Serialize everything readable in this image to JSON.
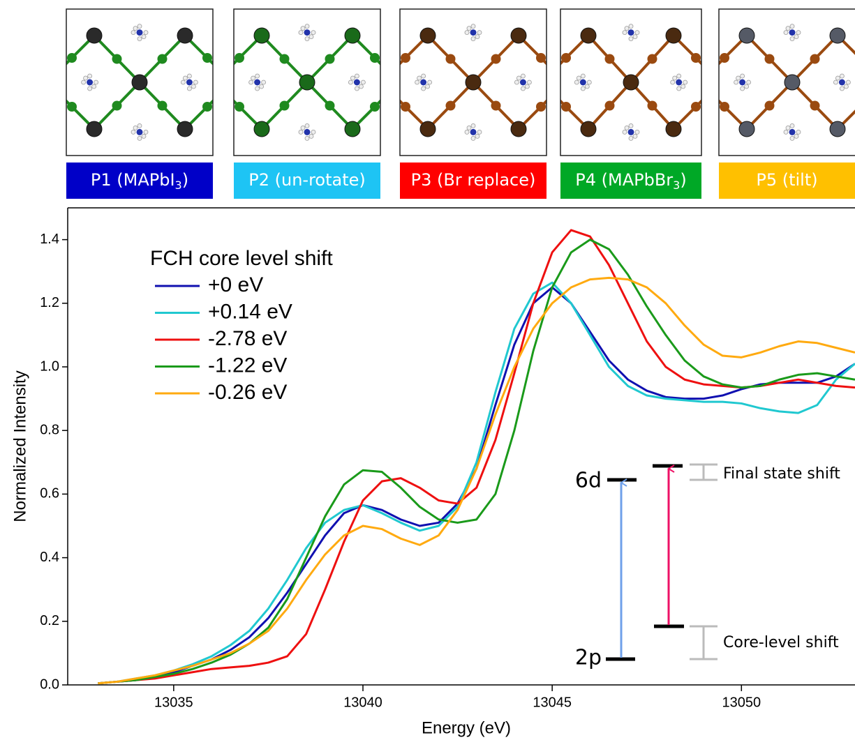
{
  "panels": [
    {
      "label_parts": [
        "P1 (MAPbI",
        "3",
        ")"
      ],
      "color": "#0000c8"
    },
    {
      "label_parts": [
        "P2 (un-rotate)"
      ],
      "color": "#1ec4f4"
    },
    {
      "label_parts": [
        "P3 (Br replace)"
      ],
      "color": "#ff0000"
    },
    {
      "label_parts": [
        "P4 (MAPbBr",
        "3",
        ")"
      ],
      "color": "#00a826"
    },
    {
      "label_parts": [
        "P5 (tilt)"
      ],
      "color": "#ffc000"
    }
  ],
  "chart_data": {
    "type": "line",
    "xlabel": "Energy (eV)",
    "ylabel": "Normalized Intensity",
    "legend_title": "FCH core level shift",
    "xlim": [
      13032.2,
      13053
    ],
    "xticks": [
      13035,
      13040,
      13045,
      13050
    ],
    "ylim": [
      0,
      1.5
    ],
    "yticks": [
      {
        "value": 0,
        "label": "0.0"
      },
      0.2,
      0.4,
      0.6,
      0.8,
      {
        "value": 1,
        "label": "1.0"
      },
      1.2,
      1.4
    ],
    "x": [
      13033,
      13033.5,
      13034,
      13034.5,
      13035,
      13035.5,
      13036,
      13036.5,
      13037,
      13037.5,
      13038,
      13038.5,
      13039,
      13039.5,
      13040,
      13040.5,
      13041,
      13041.5,
      13042,
      13042.5,
      13043,
      13043.5,
      13044,
      13044.5,
      13045,
      13045.5,
      13046,
      13046.5,
      13047,
      13047.5,
      13048,
      13048.5,
      13049,
      13049.5,
      13050,
      13050.5,
      13051,
      13051.5,
      13052,
      13052.5,
      13053
    ],
    "series": [
      {
        "name": "+0 eV",
        "color": "#1010b0",
        "values": [
          0.005,
          0.01,
          0.015,
          0.025,
          0.04,
          0.06,
          0.08,
          0.11,
          0.15,
          0.21,
          0.29,
          0.38,
          0.47,
          0.54,
          0.565,
          0.55,
          0.52,
          0.5,
          0.51,
          0.57,
          0.68,
          0.88,
          1.07,
          1.2,
          1.25,
          1.2,
          1.11,
          1.02,
          0.96,
          0.925,
          0.905,
          0.9,
          0.9,
          0.91,
          0.93,
          0.945,
          0.95,
          0.95,
          0.95,
          0.97,
          1.01
        ]
      },
      {
        "name": "+0.14 eV",
        "color": "#20c8d0",
        "values": [
          0.005,
          0.01,
          0.02,
          0.03,
          0.045,
          0.065,
          0.09,
          0.125,
          0.17,
          0.24,
          0.33,
          0.43,
          0.51,
          0.55,
          0.565,
          0.54,
          0.51,
          0.485,
          0.5,
          0.56,
          0.7,
          0.92,
          1.12,
          1.23,
          1.265,
          1.2,
          1.1,
          1.0,
          0.94,
          0.91,
          0.9,
          0.895,
          0.89,
          0.89,
          0.885,
          0.87,
          0.86,
          0.855,
          0.88,
          0.96,
          1.01
        ]
      },
      {
        "name": "-2.78 eV",
        "color": "#ee1010",
        "values": [
          0.005,
          0.01,
          0.015,
          0.02,
          0.03,
          0.04,
          0.05,
          0.055,
          0.06,
          0.07,
          0.09,
          0.16,
          0.3,
          0.45,
          0.58,
          0.64,
          0.65,
          0.62,
          0.58,
          0.57,
          0.62,
          0.77,
          0.98,
          1.2,
          1.36,
          1.43,
          1.41,
          1.32,
          1.2,
          1.08,
          1.0,
          0.96,
          0.945,
          0.94,
          0.935,
          0.94,
          0.95,
          0.96,
          0.95,
          0.94,
          0.935
        ]
      },
      {
        "name": "-1.22 eV",
        "color": "#1a9a1a",
        "values": [
          0.005,
          0.01,
          0.015,
          0.025,
          0.035,
          0.05,
          0.07,
          0.095,
          0.13,
          0.18,
          0.27,
          0.4,
          0.53,
          0.63,
          0.675,
          0.67,
          0.62,
          0.56,
          0.52,
          0.51,
          0.52,
          0.6,
          0.8,
          1.05,
          1.25,
          1.36,
          1.4,
          1.37,
          1.29,
          1.19,
          1.1,
          1.02,
          0.97,
          0.945,
          0.935,
          0.94,
          0.96,
          0.975,
          0.98,
          0.97,
          0.96
        ]
      },
      {
        "name": "-0.26 eV",
        "color": "#ffaa10",
        "values": [
          0.005,
          0.01,
          0.02,
          0.03,
          0.045,
          0.06,
          0.08,
          0.1,
          0.13,
          0.17,
          0.24,
          0.33,
          0.41,
          0.47,
          0.5,
          0.49,
          0.46,
          0.44,
          0.47,
          0.55,
          0.68,
          0.85,
          1.0,
          1.12,
          1.2,
          1.25,
          1.275,
          1.28,
          1.275,
          1.25,
          1.2,
          1.13,
          1.07,
          1.035,
          1.03,
          1.045,
          1.065,
          1.08,
          1.075,
          1.06,
          1.045
        ]
      }
    ],
    "annotations": {
      "upper_level": "6d",
      "lower_level": "2p",
      "final_state": "Final state shift",
      "core_level": "Core-level shift"
    }
  }
}
